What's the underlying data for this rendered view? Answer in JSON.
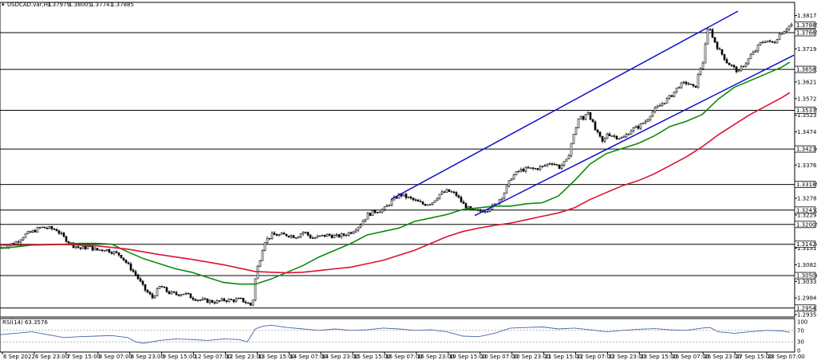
{
  "chart_data": [
    {
      "type": "candlestick",
      "header": {
        "symbol_tf": "USDCAD.var,H1",
        "ohlc": [
          "1.37979",
          "1.38005",
          "1.37741",
          "1.37885"
        ]
      },
      "ylim": [
        1.2935,
        1.8185
      ],
      "price_ticks": [
        "1.38170",
        "1.37190",
        "1.36210",
        "1.35720",
        "1.35230",
        "1.34740",
        "1.33760",
        "1.32780",
        "1.32290",
        "1.31310",
        "1.30820",
        "1.30330",
        "1.29840",
        "1.29350"
      ],
      "time_labels": [
        "6 Sep 2022",
        "6 Sep 23:00",
        "7 Sep 15:00",
        "8 Sep 07:00",
        "8 Sep 23:00",
        "9 Sep 15:00",
        "12 Sep 07:00",
        "12 Sep 23:00",
        "13 Sep 15:00",
        "14 Sep 07:00",
        "14 Sep 23:00",
        "15 Sep 15:00",
        "16 Sep 07:00",
        "16 Sep 23:00",
        "19 Sep 15:00",
        "20 Sep 07:00",
        "20 Sep 23:00",
        "21 Sep 15:00",
        "22 Sep 07:00",
        "22 Sep 23:00",
        "23 Sep 15:00",
        "26 Sep 07:00",
        "26 Sep 23:00",
        "27 Sep 15:00",
        "28 Sep 07:00"
      ],
      "levels": [
        "1.37885",
        "1.37665",
        "1.36583",
        "1.35375",
        "1.34234",
        "1.33189",
        "1.32432",
        "1.32009",
        "1.31424",
        "1.30500",
        "1.29543"
      ],
      "price_path": [
        [
          0,
          1.3132
        ],
        [
          10,
          1.314
        ],
        [
          20,
          1.315
        ],
        [
          30,
          1.317
        ],
        [
          40,
          1.318
        ],
        [
          50,
          1.3192
        ],
        [
          60,
          1.319
        ],
        [
          70,
          1.3185
        ],
        [
          80,
          1.316
        ],
        [
          90,
          1.314
        ],
        [
          100,
          1.313
        ],
        [
          110,
          1.3135
        ],
        [
          120,
          1.3125
        ],
        [
          130,
          1.3128
        ],
        [
          140,
          1.312
        ],
        [
          150,
          1.311
        ],
        [
          160,
          1.308
        ],
        [
          170,
          1.305
        ],
        [
          180,
          1.301
        ],
        [
          190,
          1.2985
        ],
        [
          200,
          1.302
        ],
        [
          210,
          1.3
        ],
        [
          220,
          1.2995
        ],
        [
          230,
          1.2998
        ],
        [
          240,
          1.2985
        ],
        [
          250,
          1.2978
        ],
        [
          260,
          1.2975
        ],
        [
          270,
          1.2972
        ],
        [
          280,
          1.2978
        ],
        [
          290,
          1.2977
        ],
        [
          300,
          1.298
        ],
        [
          310,
          1.2968
        ],
        [
          315,
          1.296
        ],
        [
          320,
          1.306
        ],
        [
          325,
          1.31
        ],
        [
          330,
          1.315
        ],
        [
          340,
          1.317
        ],
        [
          350,
          1.317
        ],
        [
          360,
          1.317
        ],
        [
          370,
          1.3165
        ],
        [
          380,
          1.318
        ],
        [
          390,
          1.316
        ],
        [
          400,
          1.3165
        ],
        [
          410,
          1.317
        ],
        [
          420,
          1.3165
        ],
        [
          430,
          1.317
        ],
        [
          440,
          1.318
        ],
        [
          450,
          1.32
        ],
        [
          460,
          1.323
        ],
        [
          470,
          1.324
        ],
        [
          480,
          1.3245
        ],
        [
          490,
          1.327
        ],
        [
          500,
          1.329
        ],
        [
          510,
          1.328
        ],
        [
          520,
          1.327
        ],
        [
          530,
          1.326
        ],
        [
          540,
          1.3265
        ],
        [
          550,
          1.329
        ],
        [
          560,
          1.33
        ],
        [
          570,
          1.329
        ],
        [
          580,
          1.326
        ],
        [
          590,
          1.324
        ],
        [
          600,
          1.324
        ],
        [
          610,
          1.3245
        ],
        [
          620,
          1.326
        ],
        [
          630,
          1.329
        ],
        [
          640,
          1.334
        ],
        [
          650,
          1.336
        ],
        [
          660,
          1.3365
        ],
        [
          670,
          1.3365
        ],
        [
          680,
          1.3372
        ],
        [
          690,
          1.3385
        ],
        [
          700,
          1.337
        ],
        [
          710,
          1.339
        ],
        [
          715,
          1.344
        ],
        [
          720,
          1.348
        ],
        [
          725,
          1.352
        ],
        [
          730,
          1.351
        ],
        [
          735,
          1.354
        ],
        [
          740,
          1.351
        ],
        [
          745,
          1.348
        ],
        [
          750,
          1.346
        ],
        [
          755,
          1.344
        ],
        [
          760,
          1.347
        ],
        [
          770,
          1.346
        ],
        [
          780,
          1.3455
        ],
        [
          790,
          1.348
        ],
        [
          800,
          1.349
        ],
        [
          810,
          1.351
        ],
        [
          815,
          1.353
        ],
        [
          820,
          1.354
        ],
        [
          830,
          1.356
        ],
        [
          840,
          1.358
        ],
        [
          850,
          1.361
        ],
        [
          860,
          1.362
        ],
        [
          870,
          1.36
        ],
        [
          875,
          1.365
        ],
        [
          880,
          1.368
        ],
        [
          885,
          1.376
        ],
        [
          888,
          1.38
        ],
        [
          890,
          1.376
        ],
        [
          895,
          1.374
        ],
        [
          900,
          1.3715
        ],
        [
          905,
          1.37
        ],
        [
          910,
          1.368
        ],
        [
          915,
          1.367
        ],
        [
          920,
          1.366
        ],
        [
          925,
          1.365
        ],
        [
          930,
          1.367
        ],
        [
          935,
          1.368
        ],
        [
          940,
          1.37
        ],
        [
          945,
          1.371
        ],
        [
          950,
          1.373
        ],
        [
          955,
          1.374
        ],
        [
          960,
          1.3745
        ],
        [
          965,
          1.3735
        ],
        [
          970,
          1.374
        ],
        [
          975,
          1.376
        ],
        [
          980,
          1.377
        ],
        [
          985,
          1.378
        ],
        [
          990,
          1.379
        ]
      ],
      "series": [
        {
          "color": "#0a8a0a",
          "values": [
            [
              0,
              1.313
            ],
            [
              20,
              1.3135
            ],
            [
              40,
              1.314
            ],
            [
              60,
              1.3142
            ],
            [
              80,
              1.3143
            ],
            [
              100,
              1.3145
            ],
            [
              120,
              1.3145
            ],
            [
              140,
              1.3143
            ],
            [
              160,
              1.312
            ],
            [
              180,
              1.31
            ],
            [
              200,
              1.3085
            ],
            [
              220,
              1.307
            ],
            [
              240,
              1.306
            ],
            [
              260,
              1.3045
            ],
            [
              280,
              1.303
            ],
            [
              300,
              1.3025
            ],
            [
              320,
              1.3025
            ],
            [
              340,
              1.304
            ],
            [
              360,
              1.306
            ],
            [
              380,
              1.308
            ],
            [
              400,
              1.3105
            ],
            [
              420,
              1.3125
            ],
            [
              440,
              1.3145
            ],
            [
              460,
              1.317
            ],
            [
              480,
              1.318
            ],
            [
              500,
              1.319
            ],
            [
              520,
              1.321
            ],
            [
              540,
              1.322
            ],
            [
              560,
              1.323
            ],
            [
              580,
              1.3245
            ],
            [
              600,
              1.325
            ],
            [
              620,
              1.3255
            ],
            [
              640,
              1.3255
            ],
            [
              660,
              1.3262
            ],
            [
              680,
              1.3265
            ],
            [
              700,
              1.3285
            ],
            [
              720,
              1.333
            ],
            [
              740,
              1.338
            ],
            [
              760,
              1.341
            ],
            [
              780,
              1.3425
            ],
            [
              800,
              1.344
            ],
            [
              820,
              1.3462
            ],
            [
              840,
              1.349
            ],
            [
              860,
              1.3505
            ],
            [
              880,
              1.3525
            ],
            [
              900,
              1.357
            ],
            [
              920,
              1.3605
            ],
            [
              940,
              1.3625
            ],
            [
              960,
              1.3645
            ],
            [
              980,
              1.3665
            ],
            [
              990,
              1.368
            ]
          ]
        },
        {
          "color": "#dd1133",
          "values": [
            [
              0,
              1.314
            ],
            [
              40,
              1.314
            ],
            [
              80,
              1.3142
            ],
            [
              120,
              1.3138
            ],
            [
              160,
              1.3128
            ],
            [
              200,
              1.3112
            ],
            [
              240,
              1.3098
            ],
            [
              280,
              1.3082
            ],
            [
              300,
              1.3072
            ],
            [
              320,
              1.3062
            ],
            [
              340,
              1.306
            ],
            [
              360,
              1.3058
            ],
            [
              380,
              1.306
            ],
            [
              400,
              1.3065
            ],
            [
              420,
              1.307
            ],
            [
              440,
              1.3075
            ],
            [
              460,
              1.3085
            ],
            [
              480,
              1.3095
            ],
            [
              500,
              1.311
            ],
            [
              520,
              1.3125
            ],
            [
              540,
              1.3145
            ],
            [
              560,
              1.3165
            ],
            [
              580,
              1.318
            ],
            [
              600,
              1.319
            ],
            [
              620,
              1.3198
            ],
            [
              640,
              1.3205
            ],
            [
              660,
              1.3215
            ],
            [
              680,
              1.3225
            ],
            [
              700,
              1.3235
            ],
            [
              720,
              1.325
            ],
            [
              740,
              1.3275
            ],
            [
              760,
              1.3295
            ],
            [
              780,
              1.3315
            ],
            [
              800,
              1.333
            ],
            [
              820,
              1.335
            ],
            [
              840,
              1.3375
            ],
            [
              860,
              1.34
            ],
            [
              880,
              1.343
            ],
            [
              900,
              1.3465
            ],
            [
              920,
              1.3495
            ],
            [
              940,
              1.3525
            ],
            [
              960,
              1.355
            ],
            [
              980,
              1.3575
            ],
            [
              990,
              1.359
            ]
          ]
        }
      ],
      "trendlines": [
        {
          "color": "#1111cc",
          "points": [
            [
              490,
              1.3275
            ],
            [
              925,
              1.383
            ]
          ]
        },
        {
          "color": "#1111cc",
          "points": [
            [
              595,
              1.3227
            ],
            [
              995,
              1.37
            ]
          ]
        }
      ]
    },
    {
      "type": "line",
      "title": "RSI(14) 63.3576",
      "ylim": [
        0,
        100
      ],
      "ticks": [
        "100",
        "70",
        "30",
        "0"
      ],
      "series": [
        {
          "color": "#4466aa",
          "values": [
            [
              0,
              55
            ],
            [
              20,
              60
            ],
            [
              40,
              65
            ],
            [
              60,
              55
            ],
            [
              80,
              45
            ],
            [
              100,
              48
            ],
            [
              120,
              50
            ],
            [
              140,
              52
            ],
            [
              160,
              45
            ],
            [
              170,
              30
            ],
            [
              180,
              25
            ],
            [
              200,
              35
            ],
            [
              220,
              40
            ],
            [
              240,
              38
            ],
            [
              260,
              35
            ],
            [
              280,
              40
            ],
            [
              300,
              38
            ],
            [
              310,
              30
            ],
            [
              320,
              75
            ],
            [
              330,
              85
            ],
            [
              340,
              88
            ],
            [
              360,
              80
            ],
            [
              380,
              75
            ],
            [
              400,
              70
            ],
            [
              420,
              75
            ],
            [
              440,
              70
            ],
            [
              460,
              72
            ],
            [
              480,
              78
            ],
            [
              500,
              75
            ],
            [
              520,
              70
            ],
            [
              540,
              72
            ],
            [
              560,
              65
            ],
            [
              580,
              50
            ],
            [
              600,
              48
            ],
            [
              620,
              60
            ],
            [
              640,
              78
            ],
            [
              660,
              80
            ],
            [
              680,
              82
            ],
            [
              700,
              75
            ],
            [
              720,
              78
            ],
            [
              740,
              72
            ],
            [
              760,
              65
            ],
            [
              780,
              70
            ],
            [
              800,
              74
            ],
            [
              820,
              76
            ],
            [
              840,
              72
            ],
            [
              860,
              70
            ],
            [
              880,
              78
            ],
            [
              890,
              80
            ],
            [
              900,
              65
            ],
            [
              920,
              60
            ],
            [
              940,
              65
            ],
            [
              960,
              70
            ],
            [
              980,
              68
            ],
            [
              990,
              63
            ]
          ]
        }
      ]
    }
  ]
}
